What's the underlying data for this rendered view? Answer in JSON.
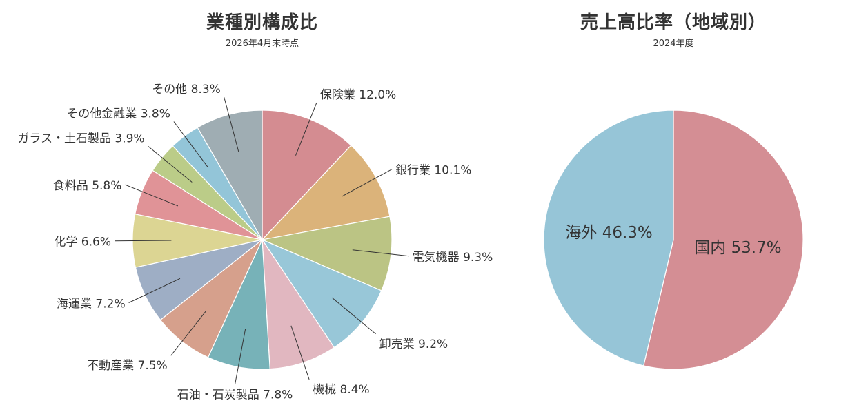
{
  "chart_data": [
    {
      "type": "pie",
      "title": "業種別構成比",
      "subtitle": "2026年4月末時点",
      "slices": [
        {
          "label": "保険業",
          "value": 12.0,
          "display": "12.0%",
          "color": "#d48c91"
        },
        {
          "label": "銀行業",
          "value": 10.1,
          "display": "10.1%",
          "color": "#dbb37a"
        },
        {
          "label": "電気機器",
          "value": 9.3,
          "display": "9.3%",
          "color": "#bbc484"
        },
        {
          "label": "卸売業",
          "value": 9.2,
          "display": "9.2%",
          "color": "#98c7d8"
        },
        {
          "label": "機械",
          "value": 8.4,
          "display": "8.4%",
          "color": "#e1b7c0"
        },
        {
          "label": "石油・石炭製品",
          "value": 7.8,
          "display": "7.8%",
          "color": "#77b2b8"
        },
        {
          "label": "不動産業",
          "value": 7.5,
          "display": "7.5%",
          "color": "#d6a08c"
        },
        {
          "label": "海運業",
          "value": 7.2,
          "display": "7.2%",
          "color": "#9eaec5"
        },
        {
          "label": "化学",
          "value": 6.6,
          "display": "6.6%",
          "color": "#dcd593"
        },
        {
          "label": "食料品",
          "value": 5.8,
          "display": "5.8%",
          "color": "#e09397"
        },
        {
          "label": "ガラス・土石製品",
          "value": 3.9,
          "display": "3.9%",
          "color": "#bbcc88"
        },
        {
          "label": "その他金融業",
          "value": 3.8,
          "display": "3.8%",
          "color": "#93c5d8"
        },
        {
          "label": "その他",
          "value": 8.3,
          "display": "8.3%",
          "color": "#9fadb3"
        }
      ]
    },
    {
      "type": "pie",
      "title": "売上高比率（地域別）",
      "subtitle": "2024年度",
      "slices": [
        {
          "label": "国内",
          "value": 53.7,
          "display": "53.7%",
          "color": "#d48e94"
        },
        {
          "label": "海外",
          "value": 46.3,
          "display": "46.3%",
          "color": "#96c5d7"
        }
      ]
    }
  ]
}
